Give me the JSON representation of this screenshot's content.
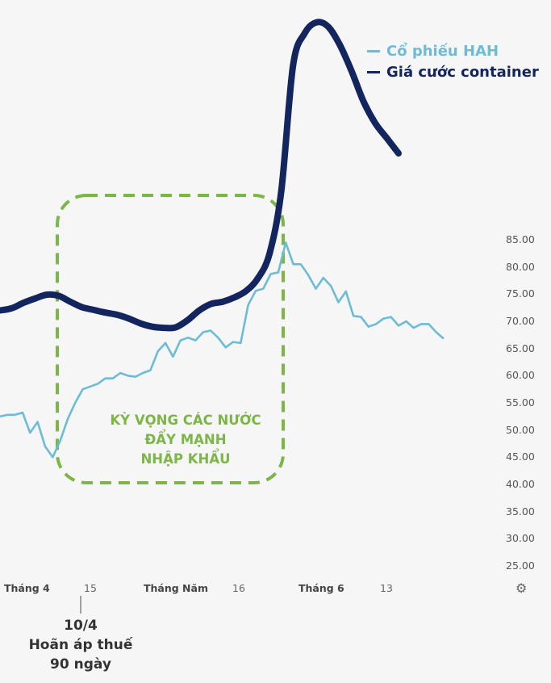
{
  "chart_data": {
    "type": "line",
    "y_axis": {
      "side": "right",
      "ticks": [
        "85.00",
        "80.00",
        "75.00",
        "70.00",
        "65.00",
        "60.00",
        "55.00",
        "50.00",
        "45.00",
        "40.00",
        "35.00",
        "30.00",
        "25.00"
      ],
      "ylim": [
        25,
        85
      ]
    },
    "x_axis": {
      "ticks": [
        {
          "label": "Tháng 4",
          "bold": true
        },
        {
          "label": "15",
          "bold": false
        },
        {
          "label": "Tháng Năm",
          "bold": true
        },
        {
          "label": "16",
          "bold": false
        },
        {
          "label": "Tháng 6",
          "bold": true
        },
        {
          "label": "13",
          "bold": false
        }
      ]
    },
    "legend": {
      "placement": "top-right",
      "items": [
        {
          "label": "Cổ phiếu HAH",
          "color": "#6cbcd6"
        },
        {
          "label": "Giá cước container",
          "color": "#13255e"
        }
      ]
    },
    "series": [
      {
        "name": "Cổ phiếu HAH",
        "color": "#6cbcd6",
        "axis": "right",
        "values": [
          52.5,
          52.8,
          52.8,
          53.2,
          49.5,
          51.5,
          47,
          45,
          48,
          52,
          55,
          57.5,
          58,
          58.5,
          59.5,
          59.5,
          60.5,
          60,
          59.8,
          60.5,
          61,
          64.5,
          66,
          63.5,
          66.5,
          67,
          66.5,
          68,
          68.3,
          67,
          65.2,
          66.2,
          66,
          73,
          75.6,
          76,
          78.7,
          79,
          84.5,
          80.5,
          80.5,
          78.5,
          76,
          78,
          76.5,
          73.5,
          75.5,
          71,
          70.8,
          69,
          69.5,
          70.5,
          70.8,
          69.2,
          70,
          68.8,
          69.5,
          69.5,
          68,
          66.8
        ]
      },
      {
        "name": "Giá cước container",
        "color": "#13255e",
        "axis": "unlabeled",
        "values": [
          72,
          72.4,
          73.4,
          74.2,
          74.9,
          74.7,
          73.6,
          72.6,
          72.1,
          71.6,
          71.2,
          70.5,
          69.6,
          69,
          68.8,
          68.9,
          70.2,
          72,
          73.2,
          73.6,
          74.4,
          75.6,
          77.9,
          82.5,
          94,
          117,
          123,
          125,
          124.2,
          120.8,
          116,
          110.5,
          106.5,
          103.7,
          100.9
        ]
      }
    ],
    "annotations": [
      {
        "type": "dashed-box",
        "text": [
          "KỲ VỌNG CÁC NƯỚC",
          "ĐẨY MẠNH",
          "NHẬP KHẨU"
        ],
        "color": "#7cb647"
      },
      {
        "type": "event-marker",
        "text": [
          "10/4",
          "Hoãn áp thuế",
          "90 ngày"
        ]
      }
    ]
  },
  "settings_icon": "gear-icon"
}
